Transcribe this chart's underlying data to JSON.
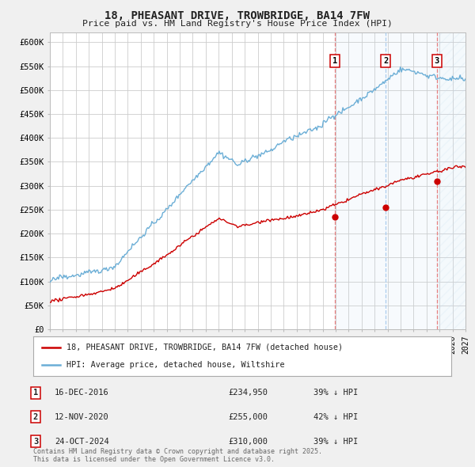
{
  "title_line1": "18, PHEASANT DRIVE, TROWBRIDGE, BA14 7FW",
  "title_line2": "Price paid vs. HM Land Registry's House Price Index (HPI)",
  "ylim": [
    0,
    620000
  ],
  "yticks": [
    0,
    50000,
    100000,
    150000,
    200000,
    250000,
    300000,
    350000,
    400000,
    450000,
    500000,
    550000,
    600000
  ],
  "ytick_labels": [
    "£0",
    "£50K",
    "£100K",
    "£150K",
    "£200K",
    "£250K",
    "£300K",
    "£350K",
    "£400K",
    "£450K",
    "£500K",
    "£550K",
    "£600K"
  ],
  "hpi_color": "#6baed6",
  "price_color": "#cc0000",
  "bg_color": "#f0f0f0",
  "plot_bg_color": "#ffffff",
  "grid_color": "#cccccc",
  "t1_year": 2016.96,
  "t2_year": 2020.87,
  "t3_year": 2024.8,
  "t1_price": 234950,
  "t2_price": 255000,
  "t3_price": 310000,
  "transactions": [
    {
      "label": "1",
      "date": "16-DEC-2016",
      "price": 234950,
      "pct": "39%"
    },
    {
      "label": "2",
      "date": "12-NOV-2020",
      "price": 255000,
      "pct": "42%"
    },
    {
      "label": "3",
      "date": "24-OCT-2024",
      "price": 310000,
      "pct": "39%"
    }
  ],
  "legend_line1": "18, PHEASANT DRIVE, TROWBRIDGE, BA14 7FW (detached house)",
  "legend_line2": "HPI: Average price, detached house, Wiltshire",
  "footnote": "Contains HM Land Registry data © Crown copyright and database right 2025.\nThis data is licensed under the Open Government Licence v3.0.",
  "xstart": 1995.0,
  "xend": 2027.0
}
